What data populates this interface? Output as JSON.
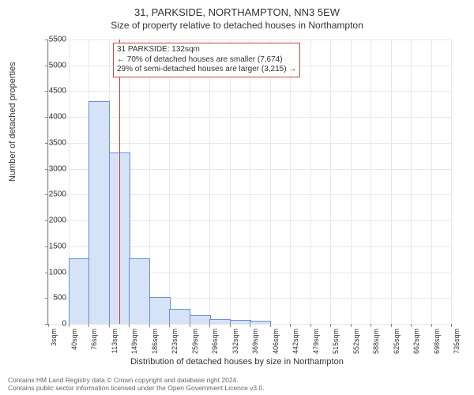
{
  "title": "31, PARKSIDE, NORTHAMPTON, NN3 5EW",
  "subtitle": "Size of property relative to detached houses in Northampton",
  "chart": {
    "type": "histogram",
    "y_label": "Number of detached properties",
    "x_label": "Distribution of detached houses by size in Northampton",
    "ylim": [
      0,
      5500
    ],
    "ytick_step": 500,
    "y_ticks": [
      0,
      500,
      1000,
      1500,
      2000,
      2500,
      3000,
      3500,
      4000,
      4500,
      5000,
      5500
    ],
    "x_ticks": [
      "3sqm",
      "40sqm",
      "76sqm",
      "113sqm",
      "149sqm",
      "186sqm",
      "223sqm",
      "259sqm",
      "296sqm",
      "332sqm",
      "369sqm",
      "406sqm",
      "442sqm",
      "479sqm",
      "515sqm",
      "552sqm",
      "588sqm",
      "625sqm",
      "662sqm",
      "698sqm",
      "735sqm"
    ],
    "bars": [
      {
        "value": 0
      },
      {
        "value": 1250
      },
      {
        "value": 4300
      },
      {
        "value": 3300
      },
      {
        "value": 1250
      },
      {
        "value": 500
      },
      {
        "value": 275
      },
      {
        "value": 150
      },
      {
        "value": 80
      },
      {
        "value": 60
      },
      {
        "value": 50
      },
      {
        "value": 0
      },
      {
        "value": 0
      },
      {
        "value": 0
      },
      {
        "value": 0
      },
      {
        "value": 0
      },
      {
        "value": 0
      },
      {
        "value": 0
      },
      {
        "value": 0
      },
      {
        "value": 0
      }
    ],
    "bar_fill": "#d6e2f5",
    "bar_stroke": "#6a8fd4",
    "grid_color": "#e8e8e8",
    "axis_color": "#888888",
    "background_color": "#ffffff",
    "marker": {
      "x_value": 132,
      "x_range": [
        3,
        735
      ],
      "color": "#cc4444",
      "annotation_lines": [
        "31 PARKSIDE: 132sqm",
        "← 70% of detached houses are smaller (7,674)",
        "29% of semi-detached houses are larger (3,215) →"
      ]
    }
  },
  "footer_line1": "Contains HM Land Registry data © Crown copyright and database right 2024.",
  "footer_line2": "Contains public sector information licensed under the Open Government Licence v3.0."
}
